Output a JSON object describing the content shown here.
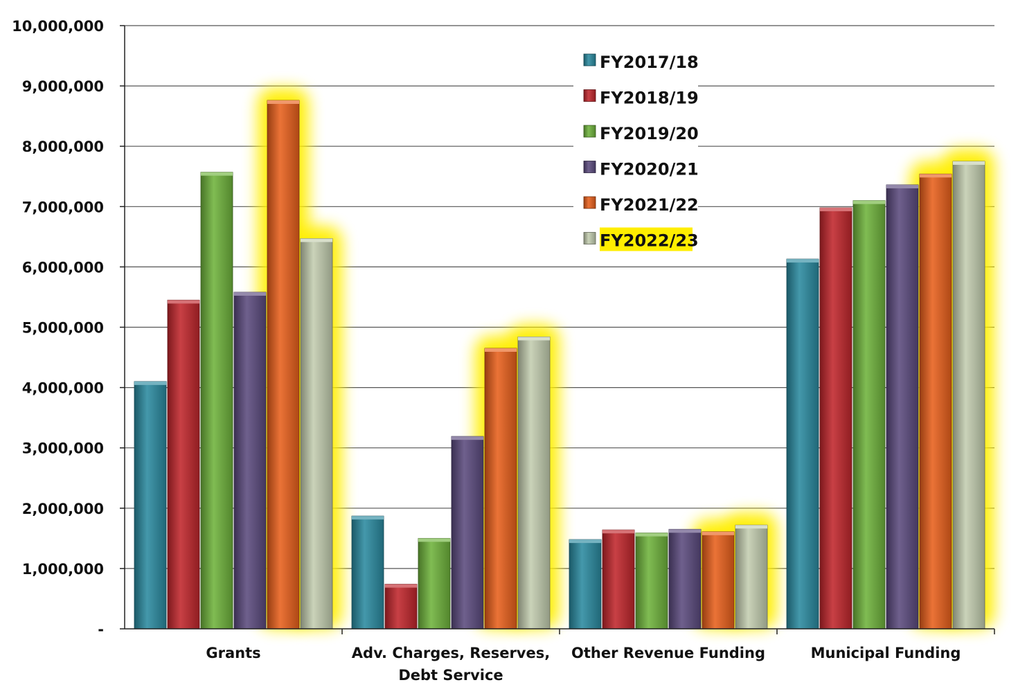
{
  "chart_data": {
    "type": "bar",
    "title": "",
    "xlabel": "",
    "ylabel": "",
    "ylim": [
      0,
      10000000
    ],
    "y_ticks": [
      "-",
      "1,000,000",
      "2,000,000",
      "3,000,000",
      "4,000,000",
      "5,000,000",
      "6,000,000",
      "7,000,000",
      "8,000,000",
      "9,000,000",
      "10,000,000"
    ],
    "categories": [
      [
        "Grants"
      ],
      [
        "Adv. Charges, Reserves,",
        "Debt Service"
      ],
      [
        "Other Revenue Funding"
      ],
      [
        "Municipal Funding"
      ]
    ],
    "series": [
      {
        "name": "FY2017/18",
        "color": "#2a8aa0",
        "values": [
          4100000,
          1870000,
          1480000,
          6130000
        ]
      },
      {
        "name": "FY2018/19",
        "color": "#c0262c",
        "values": [
          5450000,
          740000,
          1640000,
          6980000
        ]
      },
      {
        "name": "FY2019/20",
        "color": "#6fb33c",
        "values": [
          7570000,
          1500000,
          1590000,
          7100000
        ]
      },
      {
        "name": "FY2020/21",
        "color": "#5b4a7e",
        "values": [
          5580000,
          3190000,
          1650000,
          7360000
        ]
      },
      {
        "name": "FY2021/22",
        "color": "#e8601c",
        "values": [
          8760000,
          4650000,
          1610000,
          7540000
        ]
      },
      {
        "name": "FY2022/23",
        "color": "#c3cdb0",
        "values": [
          6470000,
          4840000,
          1720000,
          7750000
        ]
      }
    ],
    "highlighted_series": [
      "FY2021/22",
      "FY2022/23"
    ],
    "highlight_color": "#ffee00",
    "grid": true,
    "legend_position": "top-right"
  }
}
